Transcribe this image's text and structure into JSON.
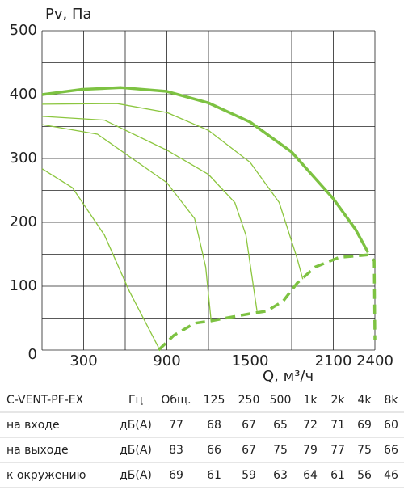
{
  "chart_data": {
    "type": "line",
    "ylabel": "Pv, Па",
    "xlabel": "Q, м³/ч",
    "xlim": [
      0,
      2400
    ],
    "ylim": [
      0,
      500
    ],
    "xticks": [
      300,
      900,
      1500,
      2100,
      2400
    ],
    "yticks": [
      0,
      100,
      200,
      300,
      400,
      500
    ],
    "xgrid": [
      0,
      300,
      600,
      900,
      1200,
      1500,
      1800,
      2100,
      2400
    ],
    "ygrid": [
      0,
      50,
      100,
      150,
      200,
      250,
      300,
      350,
      400,
      450,
      500
    ],
    "series": [
      {
        "color": "#7dc242",
        "weight": "thick",
        "line_style": "solid",
        "x": [
          0,
          280,
          570,
          900,
          1200,
          1500,
          1800,
          2100,
          2260,
          2350
        ],
        "values": [
          400,
          408,
          411,
          405,
          387,
          357,
          310,
          237,
          189,
          153
        ]
      },
      {
        "color": "#8cc63f",
        "weight": "thin",
        "line_style": "solid",
        "x": [
          0,
          540,
          900,
          1200,
          1500,
          1710,
          1840,
          1880
        ],
        "values": [
          385,
          386,
          372,
          344,
          294,
          231,
          143,
          111
        ]
      },
      {
        "color": "#8cc63f",
        "weight": "thin",
        "line_style": "solid",
        "x": [
          0,
          450,
          900,
          1200,
          1390,
          1470,
          1550
        ],
        "values": [
          366,
          360,
          313,
          275,
          231,
          180,
          61
        ]
      },
      {
        "color": "#8cc63f",
        "weight": "thin",
        "line_style": "solid",
        "x": [
          0,
          400,
          900,
          1100,
          1180,
          1220
        ],
        "values": [
          353,
          338,
          262,
          206,
          130,
          44
        ]
      },
      {
        "color": "#8cc63f",
        "weight": "thin",
        "line_style": "solid",
        "x": [
          0,
          220,
          450,
          630,
          840
        ],
        "values": [
          284,
          254,
          180,
          92,
          4
        ]
      },
      {
        "color": "#7dc242",
        "weight": "thick",
        "line_style": "dashed",
        "x": [
          840,
          950,
          1100,
          1200,
          1500,
          1620,
          1740,
          1840,
          1970,
          2140,
          2350,
          2395,
          2400
        ],
        "values": [
          0,
          23,
          42,
          45,
          57,
          61,
          77,
          105,
          130,
          145,
          149,
          140,
          16
        ]
      }
    ]
  },
  "table": {
    "header": [
      "C-VENT-PF-EX",
      "Гц",
      "Общ.",
      "125",
      "250",
      "500",
      "1k",
      "2k",
      "4k",
      "8k"
    ],
    "rows": [
      [
        "на входе",
        "дБ(А)",
        77,
        68,
        67,
        65,
        72,
        71,
        69,
        60
      ],
      [
        "на выходе",
        "дБ(А)",
        83,
        66,
        67,
        75,
        79,
        77,
        75,
        66
      ],
      [
        "к окружению",
        "дБ(А)",
        69,
        61,
        59,
        63,
        64,
        61,
        56,
        46
      ]
    ]
  }
}
